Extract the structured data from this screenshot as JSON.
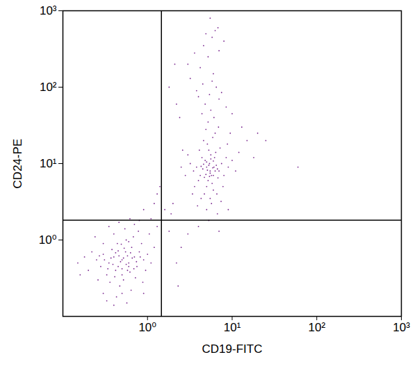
{
  "chart_data": {
    "type": "scatter",
    "x_label": "CD19-FITC",
    "y_label": "CD24-PE",
    "log": true,
    "grid": false,
    "color": "#7b2a90",
    "xlim": [
      0.1,
      1000
    ],
    "ylim": [
      0.1,
      1000
    ],
    "xticks": [
      {
        "value": 1,
        "label": "10⁰"
      },
      {
        "value": 10,
        "label": "10¹"
      },
      {
        "value": 100,
        "label": "10²"
      },
      {
        "value": 1000,
        "label": "10³"
      }
    ],
    "yticks": [
      {
        "value": 1,
        "label": "10⁰"
      },
      {
        "value": 10,
        "label": "10¹"
      },
      {
        "value": 100,
        "label": "10²"
      },
      {
        "value": 1000,
        "label": "10³"
      }
    ],
    "vlines": [
      1.46
    ],
    "hlines": [
      1.82
    ],
    "x": [
      0.5,
      0.4,
      0.6,
      0.45,
      0.55,
      0.35,
      0.7,
      0.5,
      0.3,
      0.65,
      0.42,
      0.58,
      0.48,
      0.38,
      0.75,
      0.52,
      0.28,
      0.62,
      0.44,
      0.8,
      0.33,
      0.56,
      0.25,
      0.9,
      0.47,
      0.68,
      0.36,
      0.6,
      0.22,
      0.85,
      0.4,
      0.5,
      0.72,
      0.3,
      0.95,
      0.2,
      0.54,
      0.64,
      0.26,
      1.0,
      0.43,
      0.78,
      0.18,
      0.35,
      1.1,
      0.57,
      0.3,
      0.88,
      0.15,
      0.46,
      1.2,
      0.7,
      0.24,
      0.4,
      1.05,
      0.16,
      0.62,
      0.33,
      0.9,
      0.5,
      0.42,
      0.6,
      0.37,
      0.53,
      0.66,
      0.46,
      0.39,
      0.56,
      0.31,
      0.74,
      0.49,
      0.41,
      0.63,
      0.52,
      0.45,
      0.58,
      0.34,
      0.69,
      0.27,
      0.82,
      1.3,
      1.8,
      2.2,
      2.5,
      1.6,
      1.2,
      0.9,
      1.4,
      2.0,
      0.8,
      1.1,
      1.3,
      2.3,
      1.9,
      5.5,
      5,
      6,
      4.5,
      6.5,
      5.2,
      4.8,
      6.2,
      5.8,
      4.2,
      7,
      5.4,
      3.8,
      6.8,
      5,
      5.6,
      4.4,
      7.5,
      4,
      6,
      5.3,
      3.5,
      8,
      4.7,
      6.4,
      5.1,
      3.2,
      8.5,
      4.6,
      6.6,
      7.2,
      3.6,
      5.9,
      9,
      4.1,
      5.5,
      2.8,
      7.8,
      6.3,
      4.9,
      10,
      3,
      5.7,
      8.8,
      4.3,
      6.9,
      2.5,
      11,
      5.2,
      3.9,
      7.4,
      6.1,
      4.4,
      12,
      2.6,
      5.6,
      3.4,
      9.5,
      5,
      6.7,
      4.8,
      7,
      5.4,
      3.8,
      6.5,
      4.5,
      5.8,
      3.2,
      7.5,
      8.5,
      2.4,
      4,
      13,
      15,
      10,
      20,
      6,
      4.2,
      3,
      5.2,
      7,
      4.6,
      5.8,
      6.3,
      4.9,
      8,
      3.6,
      5.5,
      6.8,
      2.2,
      1.8,
      2.1,
      18,
      25,
      60,
      9,
      5.3,
      4,
      7,
      3,
      5.5,
      5.1,
      5.9,
      4.9,
      6.1,
      5.3,
      5.7,
      4.6,
      6.3,
      5,
      6,
      5.4,
      4.3,
      6.7,
      5.6,
      4.7
    ],
    "values": [
      0.55,
      0.6,
      0.5,
      0.45,
      0.7,
      0.5,
      0.6,
      0.35,
      0.65,
      0.8,
      0.4,
      0.62,
      0.52,
      0.75,
      0.45,
      0.3,
      0.45,
      0.38,
      0.9,
      0.7,
      0.35,
      1.0,
      0.55,
      0.55,
      0.25,
      1.1,
      0.28,
      0.95,
      0.7,
      0.9,
      1.2,
      0.2,
      0.32,
      0.9,
      0.4,
      0.4,
      1.4,
      0.22,
      0.3,
      0.65,
      0.18,
      1.3,
      0.6,
      1.5,
      0.5,
      0.15,
      0.2,
      0.28,
      0.5,
      1.7,
      0.8,
      1.6,
      1.1,
      0.14,
      1.2,
      0.35,
      1.9,
      0.16,
      0.2,
      0.42,
      0.68,
      0.45,
      0.58,
      0.78,
      0.58,
      0.62,
      0.48,
      0.48,
      0.55,
      0.52,
      0.88,
      0.33,
      0.68,
      0.58,
      0.72,
      0.4,
      0.42,
      0.42,
      0.62,
      0.6,
      1.5,
      1.3,
      0.5,
      0.8,
      2.5,
      3.0,
      2.5,
      5,
      3,
      1.8,
      1.9,
      4,
      0.25,
      2.2,
      8,
      9,
      7,
      8.5,
      9.5,
      6,
      11,
      12,
      5.5,
      7,
      8,
      10,
      9,
      6.5,
      5,
      13,
      12,
      10,
      6,
      4.5,
      15,
      8,
      7,
      4,
      14,
      18,
      10,
      12,
      20,
      4,
      16,
      5,
      22,
      9,
      15,
      3.5,
      7,
      5,
      25,
      28,
      11,
      13,
      3,
      18,
      3.5,
      30,
      9,
      8,
      35,
      2.8,
      3.2,
      40,
      45,
      14,
      15,
      50,
      4,
      25,
      2.5,
      2.2,
      60,
      70,
      80,
      90,
      100,
      110,
      120,
      130,
      85,
      55,
      40,
      75,
      30,
      20,
      45,
      25,
      150,
      180,
      200,
      250,
      300,
      350,
      450,
      550,
      500,
      400,
      280,
      800,
      600,
      60,
      100,
      200,
      12,
      20,
      9,
      2.5,
      1.8,
      1.5,
      1.3,
      1.2,
      7.5,
      8.2,
      8.8,
      7.2,
      9,
      9.5,
      7,
      9.8,
      8,
      10.5,
      10.8,
      6.8,
      9.2,
      8.5,
      11.5,
      6.6
    ]
  }
}
